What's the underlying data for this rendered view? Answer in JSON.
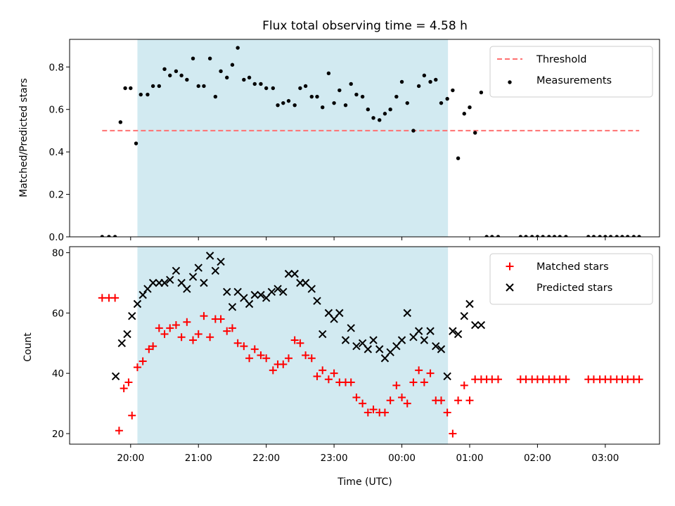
{
  "chart_data": [
    {
      "type": "scatter",
      "title": "Flux total observing time = 4.58 h",
      "xlabel": "",
      "ylabel": "Matched/Predicted stars",
      "ylim": [
        0.0,
        0.93
      ],
      "yticks": [
        0.0,
        0.2,
        0.4,
        0.6,
        0.8
      ],
      "xlim_hours": [
        19.1,
        27.8
      ],
      "shaded_interval_hours": [
        20.1,
        24.68
      ],
      "shade_color": "#add8e6",
      "legend_position": "upper right",
      "threshold": {
        "name": "Threshold",
        "value": 0.5,
        "x_range_hours": [
          19.58,
          27.5
        ],
        "color": "#ff7070",
        "style": "dashed"
      },
      "series": [
        {
          "name": "Measurements",
          "marker": "dot",
          "color": "#000000",
          "x": [
            19.58,
            19.68,
            19.77,
            19.85,
            19.92,
            20.0,
            20.08,
            20.15,
            20.25,
            20.33,
            20.42,
            20.5,
            20.58,
            20.67,
            20.75,
            20.83,
            20.92,
            21.0,
            21.08,
            21.17,
            21.25,
            21.33,
            21.42,
            21.5,
            21.58,
            21.67,
            21.75,
            21.83,
            21.92,
            22.0,
            22.1,
            22.17,
            22.25,
            22.33,
            22.42,
            22.5,
            22.58,
            22.67,
            22.75,
            22.83,
            22.92,
            23.0,
            23.08,
            23.17,
            23.25,
            23.33,
            23.42,
            23.5,
            23.58,
            23.67,
            23.75,
            23.83,
            23.92,
            24.0,
            24.08,
            24.17,
            24.25,
            24.33,
            24.42,
            24.5,
            24.58,
            24.67,
            24.75,
            24.83,
            24.92,
            25.0,
            25.08,
            25.17,
            25.25,
            25.33,
            25.42,
            25.75,
            25.83,
            25.92,
            26.0,
            26.08,
            26.17,
            26.25,
            26.33,
            26.42,
            26.75,
            26.83,
            26.92,
            27.0,
            27.08,
            27.17,
            27.25,
            27.33,
            27.42,
            27.5
          ],
          "y": [
            0.0,
            0.0,
            0.0,
            0.54,
            0.7,
            0.7,
            0.44,
            0.67,
            0.67,
            0.71,
            0.71,
            0.79,
            0.76,
            0.78,
            0.76,
            0.74,
            0.84,
            0.71,
            0.71,
            0.84,
            0.66,
            0.78,
            0.75,
            0.81,
            0.89,
            0.74,
            0.75,
            0.72,
            0.72,
            0.7,
            0.7,
            0.62,
            0.63,
            0.64,
            0.62,
            0.7,
            0.71,
            0.66,
            0.66,
            0.61,
            0.77,
            0.63,
            0.69,
            0.62,
            0.72,
            0.67,
            0.66,
            0.6,
            0.56,
            0.55,
            0.58,
            0.6,
            0.66,
            0.73,
            0.63,
            0.5,
            0.71,
            0.76,
            0.73,
            0.74,
            0.63,
            0.65,
            0.69,
            0.37,
            0.58,
            0.61,
            0.49,
            0.68,
            0.0,
            0.0,
            0.0,
            0.0,
            0.0,
            0.0,
            0.0,
            0.0,
            0.0,
            0.0,
            0.0,
            0.0,
            0.0,
            0.0,
            0.0,
            0.0,
            0.0,
            0.0,
            0.0,
            0.0,
            0.0,
            0.0
          ]
        }
      ]
    },
    {
      "type": "scatter",
      "title": "",
      "xlabel": "Time (UTC)",
      "ylabel": "Count",
      "ylim": [
        16.5,
        82
      ],
      "yticks": [
        20,
        40,
        60,
        80
      ],
      "xlim_hours": [
        19.1,
        27.8
      ],
      "xticks_hours": [
        20,
        21,
        22,
        23,
        24,
        25,
        26,
        27
      ],
      "xtick_labels": [
        "20:00",
        "21:00",
        "22:00",
        "23:00",
        "00:00",
        "01:00",
        "02:00",
        "03:00"
      ],
      "shaded_interval_hours": [
        20.1,
        24.68
      ],
      "shade_color": "#add8e6",
      "legend_position": "upper right",
      "series": [
        {
          "name": "Matched stars",
          "marker": "plus",
          "color": "#ff0000",
          "x": [
            19.58,
            19.68,
            19.77,
            19.83,
            19.9,
            19.97,
            20.02,
            20.1,
            20.18,
            20.27,
            20.33,
            20.42,
            20.5,
            20.58,
            20.67,
            20.75,
            20.83,
            20.92,
            21.0,
            21.08,
            21.17,
            21.25,
            21.33,
            21.42,
            21.5,
            21.58,
            21.67,
            21.75,
            21.83,
            21.92,
            22.0,
            22.1,
            22.17,
            22.25,
            22.33,
            22.42,
            22.5,
            22.58,
            22.67,
            22.75,
            22.83,
            22.92,
            23.0,
            23.08,
            23.17,
            23.25,
            23.33,
            23.42,
            23.5,
            23.58,
            23.67,
            23.75,
            23.83,
            23.92,
            24.0,
            24.08,
            24.17,
            24.25,
            24.33,
            24.42,
            24.5,
            24.58,
            24.67,
            24.75,
            24.83,
            24.92,
            25.0,
            25.08,
            25.17,
            25.25,
            25.33,
            25.42,
            25.75,
            25.83,
            25.92,
            26.0,
            26.08,
            26.17,
            26.25,
            26.33,
            26.42,
            26.75,
            26.83,
            26.92,
            27.0,
            27.08,
            27.17,
            27.25,
            27.33,
            27.42,
            27.5
          ],
          "y": [
            65,
            65,
            65,
            21,
            35,
            37,
            26,
            42,
            44,
            48,
            49,
            55,
            53,
            55,
            56,
            52,
            57,
            51,
            53,
            59,
            52,
            58,
            58,
            54,
            55,
            50,
            49,
            45,
            48,
            46,
            45,
            41,
            43,
            43,
            45,
            51,
            50,
            46,
            45,
            39,
            41,
            38,
            40,
            37,
            37,
            37,
            32,
            30,
            27,
            28,
            27,
            27,
            31,
            36,
            32,
            30,
            37,
            41,
            37,
            40,
            31,
            31,
            27,
            20,
            31,
            36,
            31,
            38,
            38,
            38,
            38,
            38,
            38,
            38,
            38,
            38,
            38,
            38,
            38,
            38,
            38,
            38,
            38,
            38,
            38,
            38,
            38,
            38,
            38,
            38,
            38
          ]
        },
        {
          "name": "Predicted stars",
          "marker": "x",
          "color": "#000000",
          "x": [
            19.78,
            19.87,
            19.95,
            20.02,
            20.1,
            20.18,
            20.25,
            20.33,
            20.42,
            20.5,
            20.58,
            20.67,
            20.75,
            20.83,
            20.92,
            21.0,
            21.08,
            21.17,
            21.25,
            21.33,
            21.42,
            21.5,
            21.58,
            21.67,
            21.75,
            21.83,
            21.92,
            22.0,
            22.08,
            22.17,
            22.25,
            22.33,
            22.42,
            22.5,
            22.58,
            22.67,
            22.75,
            22.83,
            22.92,
            23.0,
            23.08,
            23.17,
            23.25,
            23.33,
            23.42,
            23.5,
            23.58,
            23.67,
            23.75,
            23.83,
            23.92,
            24.0,
            24.08,
            24.17,
            24.25,
            24.33,
            24.42,
            24.5,
            24.58,
            24.67,
            24.75,
            24.83,
            24.92,
            25.0,
            25.08,
            25.17
          ],
          "y": [
            39,
            50,
            53,
            59,
            63,
            66,
            68,
            70,
            70,
            70,
            71,
            74,
            70,
            68,
            72,
            75,
            70,
            79,
            74,
            77,
            67,
            62,
            67,
            65,
            63,
            66,
            66,
            65,
            67,
            68,
            67,
            73,
            73,
            70,
            70,
            68,
            64,
            53,
            60,
            58,
            60,
            51,
            55,
            49,
            50,
            48,
            51,
            48,
            45,
            47,
            49,
            51,
            60,
            52,
            54,
            51,
            54,
            49,
            48,
            39,
            54,
            53,
            59,
            63,
            56,
            56
          ]
        }
      ]
    }
  ]
}
